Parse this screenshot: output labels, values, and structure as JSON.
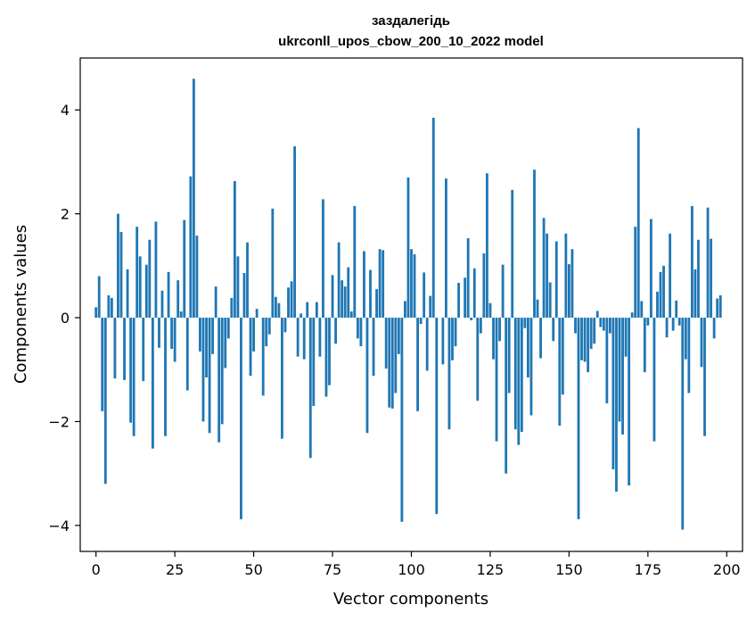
{
  "chart_data": {
    "type": "bar",
    "title": "заздалегідь",
    "subtitle": "ukrconll_upos_cbow_200_10_2022 model",
    "xlabel": "Vector components",
    "ylabel": "Components values",
    "xlim": [
      -5,
      205
    ],
    "ylim": [
      -4.5,
      5.0
    ],
    "xticks": [
      0,
      25,
      50,
      75,
      100,
      125,
      150,
      175,
      200
    ],
    "yticks": [
      -4,
      -2,
      0,
      2,
      4
    ],
    "ytick_labels": [
      "−4",
      "−2",
      "0",
      "2",
      "4"
    ],
    "bar_color": "#1f77b4",
    "grid": false,
    "values": [
      0.2,
      0.8,
      -1.8,
      -3.2,
      0.43,
      0.38,
      -1.17,
      2.0,
      1.65,
      -1.2,
      0.93,
      -2.02,
      -2.28,
      1.75,
      1.18,
      -1.22,
      1.02,
      1.5,
      -2.52,
      1.85,
      -0.58,
      0.52,
      -2.28,
      0.88,
      -0.6,
      -0.85,
      0.72,
      0.12,
      1.88,
      -1.4,
      2.72,
      4.6,
      1.58,
      -0.65,
      -2.0,
      -1.15,
      -2.22,
      -0.7,
      0.6,
      -2.4,
      -2.05,
      -0.97,
      -0.4,
      0.38,
      2.63,
      1.18,
      -3.88,
      0.86,
      1.45,
      -1.12,
      -0.65,
      0.17,
      0.0,
      -1.5,
      -0.55,
      -0.32,
      2.1,
      0.4,
      0.28,
      -2.33,
      -0.28,
      0.58,
      0.7,
      3.3,
      -0.75,
      0.08,
      -0.8,
      0.3,
      -2.7,
      -1.7,
      0.3,
      -0.75,
      2.28,
      -1.52,
      -1.3,
      0.82,
      -0.5,
      1.45,
      0.72,
      0.6,
      0.97,
      0.12,
      2.15,
      -0.4,
      -0.55,
      1.28,
      -2.22,
      0.92,
      -1.12,
      0.55,
      1.32,
      1.3,
      -0.98,
      -1.73,
      -1.75,
      -1.45,
      -0.7,
      -3.93,
      0.32,
      2.7,
      1.32,
      1.22,
      -1.8,
      -0.12,
      0.87,
      -1.02,
      0.42,
      3.85,
      -3.78,
      0.0,
      -0.9,
      2.68,
      -2.15,
      -0.82,
      -0.55,
      0.67,
      0.0,
      0.77,
      1.53,
      -0.05,
      0.95,
      -1.6,
      -0.3,
      1.24,
      2.78,
      0.28,
      -0.8,
      -2.38,
      -0.45,
      1.02,
      -3.0,
      -1.45,
      2.46,
      -2.15,
      -2.45,
      -2.2,
      -0.2,
      -1.15,
      -1.88,
      2.85,
      0.35,
      -0.78,
      1.92,
      1.62,
      0.68,
      -0.45,
      1.47,
      -2.08,
      -1.48,
      1.62,
      1.03,
      1.32,
      -0.3,
      -3.88,
      -0.82,
      -0.85,
      -1.05,
      -0.6,
      -0.5,
      0.13,
      -0.18,
      -0.25,
      -1.65,
      -0.3,
      -2.92,
      -3.35,
      -2.0,
      -2.25,
      -0.75,
      -3.23,
      0.1,
      1.75,
      3.65,
      0.32,
      -1.05,
      -0.15,
      1.9,
      -2.38,
      0.5,
      0.88,
      1.0,
      -0.38,
      1.62,
      -0.25,
      0.33,
      -0.15,
      -4.08,
      -0.8,
      -1.45,
      2.15,
      0.93,
      1.5,
      -0.95,
      -2.28,
      2.12,
      1.52,
      -0.4,
      0.37,
      0.43
    ]
  }
}
